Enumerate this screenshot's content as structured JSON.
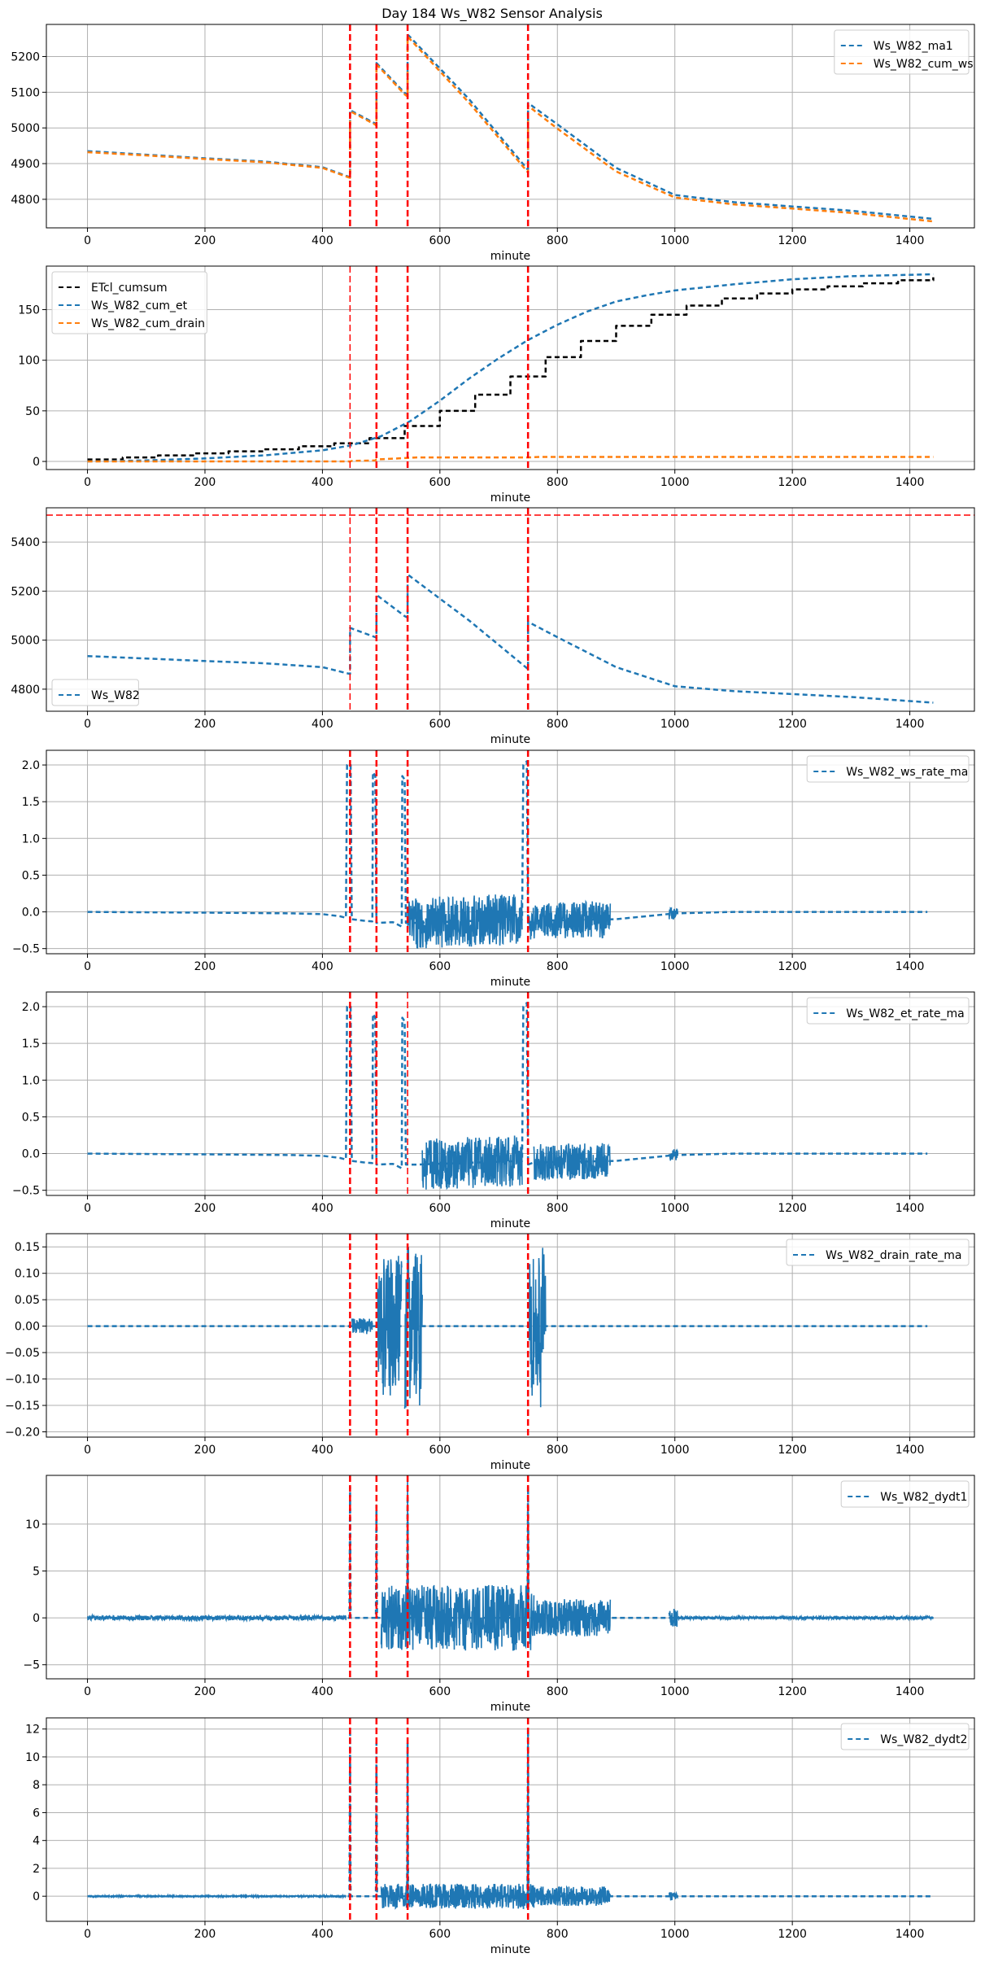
{
  "suptitle": "Day 184 Ws_W82 Sensor Analysis",
  "colors": {
    "blue": "#1f77b4",
    "orange": "#ff7f0e",
    "black": "#000000",
    "red": "#ff0000",
    "grid": "#b0b0b0"
  },
  "chart_data": [
    {
      "type": "line",
      "id": "p1",
      "xlabel": "minute",
      "xlim": [
        -70,
        1510
      ],
      "ylim": [
        4720,
        5290
      ],
      "xticks": [
        0,
        200,
        400,
        600,
        800,
        1000,
        1200,
        1400
      ],
      "yticks": [
        4800,
        4900,
        5000,
        5100,
        5200
      ],
      "legend_loc": "upper right",
      "vlines": [
        {
          "x": 447,
          "width": 2.5,
          "dash": "8,4"
        },
        {
          "x": 492,
          "width": 2.5,
          "dash": "8,4"
        },
        {
          "x": 545,
          "width": 2.5,
          "dash": "8,4"
        },
        {
          "x": 750,
          "width": 2.5,
          "dash": "8,4"
        }
      ],
      "series": [
        {
          "name": "Ws_W82_ma1",
          "color": "#1f77b4",
          "dash": "6,4",
          "width": 2.5,
          "x": [
            0,
            100,
            200,
            300,
            400,
            440,
            447,
            447,
            490,
            492,
            492,
            540,
            545,
            545,
            650,
            750,
            750,
            800,
            900,
            1000,
            1100,
            1200,
            1300,
            1440
          ],
          "y": [
            4935,
            4925,
            4915,
            4906,
            4890,
            4866,
            4862,
            5050,
            5012,
            5010,
            5182,
            5098,
            5092,
            5262,
            5080,
            4882,
            5070,
            5010,
            4888,
            4812,
            4792,
            4780,
            4768,
            4745
          ]
        },
        {
          "name": "Ws_W82_cum_ws",
          "color": "#ff7f0e",
          "dash": "6,4",
          "width": 2.5,
          "x": [
            0,
            100,
            200,
            300,
            400,
            440,
            447,
            447,
            490,
            492,
            492,
            540,
            545,
            545,
            650,
            750,
            750,
            800,
            900,
            1000,
            1100,
            1200,
            1300,
            1440
          ],
          "y": [
            4932,
            4923,
            4913,
            4904,
            4888,
            4864,
            4860,
            5047,
            5009,
            5006,
            5178,
            5094,
            5088,
            5256,
            5070,
            4875,
            5062,
            4998,
            4878,
            4805,
            4786,
            4774,
            4762,
            4738
          ]
        }
      ]
    },
    {
      "type": "line",
      "id": "p2",
      "xlabel": "minute",
      "xlim": [
        -70,
        1510
      ],
      "ylim": [
        -8,
        193
      ],
      "xticks": [
        0,
        200,
        400,
        600,
        800,
        1000,
        1200,
        1400
      ],
      "yticks": [
        0,
        50,
        100,
        150
      ],
      "legend_loc": "upper left",
      "vlines": [
        {
          "x": 447,
          "width": 1.5,
          "dash": "8,4"
        },
        {
          "x": 492,
          "width": 2.5,
          "dash": "8,4"
        },
        {
          "x": 545,
          "width": 2.5,
          "dash": "8,4"
        },
        {
          "x": 750,
          "width": 2.5,
          "dash": "8,4"
        }
      ],
      "series": [
        {
          "name": "ETcl_cumsum",
          "color": "#000000",
          "dash": "6,4",
          "width": 2.5,
          "steps": true,
          "x": [
            0,
            60,
            120,
            180,
            240,
            300,
            360,
            420,
            480,
            540,
            600,
            660,
            720,
            780,
            840,
            900,
            960,
            1020,
            1080,
            1140,
            1200,
            1260,
            1320,
            1380,
            1440
          ],
          "y": [
            2,
            4,
            6,
            8,
            10,
            12,
            15,
            18,
            23,
            35,
            50,
            66,
            84,
            103,
            119,
            134,
            145,
            154,
            161,
            166,
            170,
            173,
            176,
            179,
            182
          ]
        },
        {
          "name": "Ws_W82_cum_et",
          "color": "#1f77b4",
          "dash": "6,4",
          "width": 2.5,
          "x": [
            0,
            100,
            200,
            300,
            400,
            450,
            500,
            550,
            600,
            650,
            700,
            750,
            800,
            850,
            900,
            950,
            1000,
            1100,
            1200,
            1300,
            1440
          ],
          "y": [
            0,
            1,
            3,
            6,
            11,
            16,
            25,
            40,
            60,
            82,
            102,
            120,
            135,
            148,
            158,
            164,
            169,
            175,
            180,
            183,
            185
          ]
        },
        {
          "name": "Ws_W82_cum_drain",
          "color": "#ff7f0e",
          "dash": "6,4",
          "width": 2.5,
          "x": [
            0,
            447,
            450,
            490,
            492,
            530,
            545,
            560,
            750,
            770,
            1440
          ],
          "y": [
            0,
            0,
            0.5,
            1,
            2,
            3,
            3.5,
            4,
            4,
            4.5,
            4.5
          ]
        }
      ]
    },
    {
      "type": "line",
      "id": "p3",
      "xlabel": "minute",
      "xlim": [
        -70,
        1510
      ],
      "ylim": [
        4710,
        5540
      ],
      "xticks": [
        0,
        200,
        400,
        600,
        800,
        1000,
        1200,
        1400
      ],
      "yticks": [
        4800,
        5000,
        5200,
        5400
      ],
      "legend_loc": "lower left",
      "hline": {
        "y": 5510
      },
      "vlines": [
        {
          "x": 447,
          "width": 1.5,
          "dash": "8,4"
        },
        {
          "x": 492,
          "width": 2.5,
          "dash": "8,4"
        },
        {
          "x": 545,
          "width": 2.5,
          "dash": "8,4"
        },
        {
          "x": 750,
          "width": 2.5,
          "dash": "8,4"
        }
      ],
      "series": [
        {
          "name": "Ws_W82",
          "color": "#1f77b4",
          "dash": "6,4",
          "width": 2.5,
          "x": [
            0,
            100,
            200,
            300,
            400,
            440,
            447,
            447,
            490,
            492,
            492,
            540,
            545,
            545,
            650,
            750,
            750,
            800,
            900,
            1000,
            1100,
            1200,
            1300,
            1440
          ],
          "y": [
            4935,
            4925,
            4915,
            4906,
            4890,
            4866,
            4862,
            5050,
            5012,
            5010,
            5185,
            5098,
            5092,
            5268,
            5080,
            4882,
            5075,
            5012,
            4890,
            4812,
            4792,
            4780,
            4768,
            4745
          ]
        }
      ]
    },
    {
      "type": "line",
      "id": "p4",
      "xlabel": "minute",
      "xlim": [
        -70,
        1510
      ],
      "ylim": [
        -0.57,
        2.2
      ],
      "xticks": [
        0,
        200,
        400,
        600,
        800,
        1000,
        1200,
        1400
      ],
      "yticks": [
        -0.5,
        0.0,
        0.5,
        1.0,
        1.5,
        2.0
      ],
      "ytick_labels": [
        "−0.5",
        "0.0",
        "0.5",
        "1.0",
        "1.5",
        "2.0"
      ],
      "legend_loc": "upper right",
      "vlines": [
        {
          "x": 447,
          "width": 2.5,
          "dash": "8,4"
        },
        {
          "x": 492,
          "width": 2.5,
          "dash": "8,4"
        },
        {
          "x": 545,
          "width": 2.5,
          "dash": "8,4"
        },
        {
          "x": 750,
          "width": 2.5,
          "dash": "8,4"
        }
      ],
      "series": [
        {
          "name": "Ws_W82_ws_rate_ma",
          "color": "#1f77b4",
          "dash": "6,4",
          "width": 2.5,
          "x": [
            0,
            200,
            350,
            400,
            430,
            440,
            442,
            448,
            450,
            470,
            485,
            486,
            490,
            492,
            520,
            535,
            536,
            540,
            542,
            560,
            740,
            742,
            748,
            750,
            760,
            900,
            1000,
            1100,
            1430
          ],
          "y": [
            0,
            -0.01,
            -0.02,
            -0.03,
            -0.06,
            -0.08,
            2.0,
            2.0,
            -0.1,
            -0.12,
            -0.13,
            1.9,
            1.85,
            -0.15,
            -0.14,
            -0.2,
            1.85,
            1.8,
            -0.15,
            -0.15,
            -0.1,
            2.0,
            2.05,
            -0.15,
            -0.12,
            -0.1,
            -0.02,
            0.0,
            0.0
          ],
          "noise": [
            {
              "from": 545,
              "to": 740,
              "amp": 0.35
            },
            {
              "from": 752,
              "to": 890,
              "amp": 0.25
            },
            {
              "from": 990,
              "to": 1005,
              "amp": 0.08
            }
          ]
        }
      ]
    },
    {
      "type": "line",
      "id": "p5",
      "xlabel": "minute",
      "xlim": [
        -70,
        1510
      ],
      "ylim": [
        -0.57,
        2.2
      ],
      "xticks": [
        0,
        200,
        400,
        600,
        800,
        1000,
        1200,
        1400
      ],
      "yticks": [
        -0.5,
        0.0,
        0.5,
        1.0,
        1.5,
        2.0
      ],
      "ytick_labels": [
        "−0.5",
        "0.0",
        "0.5",
        "1.0",
        "1.5",
        "2.0"
      ],
      "legend_loc": "upper right",
      "vlines": [
        {
          "x": 447,
          "width": 2.5,
          "dash": "8,4"
        },
        {
          "x": 492,
          "width": 2.5,
          "dash": "8,4"
        },
        {
          "x": 545,
          "width": 1.5,
          "dash": "8,4"
        },
        {
          "x": 750,
          "width": 2.5,
          "dash": "8,4"
        }
      ],
      "series": [
        {
          "name": "Ws_W82_et_rate_ma",
          "color": "#1f77b4",
          "dash": "6,4",
          "width": 2.5,
          "x": [
            0,
            200,
            350,
            400,
            430,
            440,
            442,
            448,
            450,
            470,
            485,
            486,
            490,
            492,
            520,
            535,
            536,
            540,
            542,
            560,
            740,
            742,
            748,
            750,
            760,
            900,
            1000,
            1100,
            1430
          ],
          "y": [
            0,
            -0.01,
            -0.02,
            -0.03,
            -0.06,
            -0.08,
            2.0,
            2.0,
            -0.1,
            -0.12,
            -0.13,
            1.9,
            1.85,
            -0.15,
            -0.14,
            -0.2,
            1.85,
            1.8,
            -0.15,
            -0.15,
            -0.1,
            2.0,
            2.05,
            -0.15,
            -0.12,
            -0.1,
            -0.02,
            0.0,
            0.0
          ],
          "noise": [
            {
              "from": 570,
              "to": 740,
              "amp": 0.35
            },
            {
              "from": 760,
              "to": 890,
              "amp": 0.25
            },
            {
              "from": 990,
              "to": 1005,
              "amp": 0.08
            }
          ]
        }
      ]
    },
    {
      "type": "line",
      "id": "p6",
      "xlabel": "minute",
      "xlim": [
        -70,
        1510
      ],
      "ylim": [
        -0.21,
        0.175
      ],
      "xticks": [
        0,
        200,
        400,
        600,
        800,
        1000,
        1200,
        1400
      ],
      "yticks": [
        -0.2,
        -0.15,
        -0.1,
        -0.05,
        0.0,
        0.05,
        0.1,
        0.15
      ],
      "ytick_labels": [
        "−0.20",
        "−0.15",
        "−0.10",
        "−0.05",
        "0.00",
        "0.05",
        "0.10",
        "0.15"
      ],
      "legend_loc": "upper right",
      "vlines": [
        {
          "x": 447,
          "width": 2.5,
          "dash": "8,4"
        },
        {
          "x": 492,
          "width": 2.5,
          "dash": "8,4"
        },
        {
          "x": 545,
          "width": 2.5,
          "dash": "8,4"
        },
        {
          "x": 750,
          "width": 2.5,
          "dash": "8,4"
        }
      ],
      "series": [
        {
          "name": "Ws_W82_drain_rate_ma",
          "color": "#1f77b4",
          "dash": "6,4",
          "width": 2.5,
          "x": [
            0,
            1430
          ],
          "y": [
            0,
            0
          ],
          "noise": [
            {
              "from": 450,
              "to": 485,
              "amp": 0.015
            },
            {
              "from": 494,
              "to": 535,
              "amp": 0.14
            },
            {
              "from": 540,
              "to": 570,
              "amp": 0.16
            },
            {
              "from": 752,
              "to": 780,
              "amp": 0.16
            }
          ]
        }
      ]
    },
    {
      "type": "line",
      "id": "p7",
      "xlabel": "minute",
      "xlim": [
        -70,
        1510
      ],
      "ylim": [
        -6.5,
        15.2
      ],
      "xticks": [
        0,
        200,
        400,
        600,
        800,
        1000,
        1200,
        1400
      ],
      "yticks": [
        -5,
        0,
        5,
        10
      ],
      "ytick_labels": [
        "−5",
        "0",
        "5",
        "10"
      ],
      "legend_loc": "upper right",
      "vlines": [
        {
          "x": 447,
          "width": 2.5,
          "dash": "8,4"
        },
        {
          "x": 492,
          "width": 2.5,
          "dash": "8,4"
        },
        {
          "x": 545,
          "width": 2.5,
          "dash": "8,4"
        },
        {
          "x": 750,
          "width": 2.5,
          "dash": "8,4"
        }
      ],
      "series": [
        {
          "name": "Ws_W82_dydt1",
          "color": "#1f77b4",
          "dash": "6,4",
          "width": 2.5,
          "x": [
            0,
            446,
            447,
            448,
            491,
            492,
            493,
            544,
            545,
            546,
            749,
            750,
            751,
            1440
          ],
          "y": [
            0,
            0,
            14,
            0,
            0,
            12,
            0,
            0,
            13,
            0,
            0,
            14,
            0,
            0
          ],
          "noise": [
            {
              "from": 0,
              "to": 440,
              "amp": 0.25
            },
            {
              "from": 500,
              "to": 760,
              "amp": 3.5
            },
            {
              "from": 760,
              "to": 890,
              "amp": 2.0
            },
            {
              "from": 990,
              "to": 1005,
              "amp": 1.0
            },
            {
              "from": 1005,
              "to": 1440,
              "amp": 0.15
            }
          ]
        }
      ]
    },
    {
      "type": "line",
      "id": "p8",
      "xlabel": "minute",
      "xlim": [
        -70,
        1510
      ],
      "ylim": [
        -1.8,
        12.8
      ],
      "xticks": [
        0,
        200,
        400,
        600,
        800,
        1000,
        1200,
        1400
      ],
      "yticks": [
        0,
        2,
        4,
        6,
        8,
        10,
        12
      ],
      "legend_loc": "upper right",
      "vlines": [
        {
          "x": 447,
          "width": 2.5,
          "dash": "8,4"
        },
        {
          "x": 492,
          "width": 2.5,
          "dash": "8,4"
        },
        {
          "x": 545,
          "width": 2.5,
          "dash": "8,4"
        },
        {
          "x": 750,
          "width": 2.5,
          "dash": "8,4"
        }
      ],
      "series": [
        {
          "name": "Ws_W82_dydt2",
          "color": "#1f77b4",
          "dash": "6,4",
          "width": 2.5,
          "x": [
            0,
            446,
            447,
            448,
            491,
            492,
            493,
            544,
            545,
            546,
            749,
            750,
            751,
            1440
          ],
          "y": [
            0,
            0,
            12,
            0,
            0,
            11,
            0,
            0,
            11,
            0,
            0,
            12,
            0,
            0
          ],
          "noise": [
            {
              "from": 500,
              "to": 760,
              "amp": 0.9
            },
            {
              "from": 760,
              "to": 890,
              "amp": 0.7
            },
            {
              "from": 990,
              "to": 1005,
              "amp": 0.3
            },
            {
              "from": 0,
              "to": 440,
              "amp": 0.05
            }
          ]
        }
      ]
    }
  ]
}
